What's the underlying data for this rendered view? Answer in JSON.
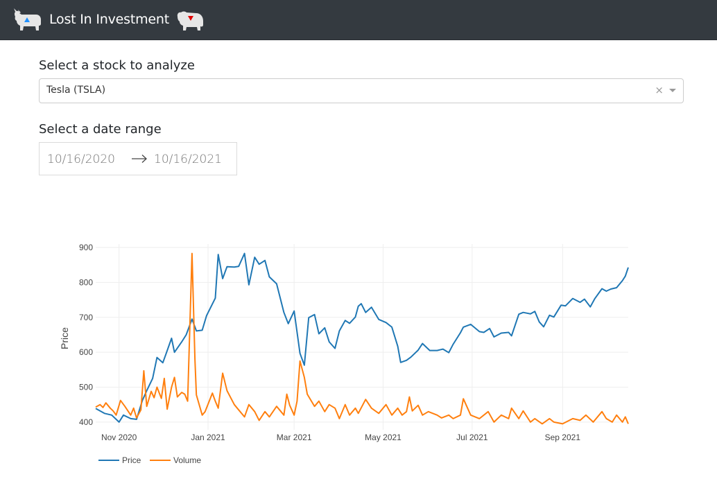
{
  "navbar": {
    "brand": "Lost In Investment",
    "bull_icon": "bull-icon",
    "bear_icon": "bear-icon",
    "colors": {
      "background": "#343a40",
      "bull_marker": "#1e90ff",
      "bear_marker": "#e00000"
    }
  },
  "stock_select": {
    "label": "Select a stock to analyze",
    "value": "Tesla (TSLA)",
    "clear_glyph": "×"
  },
  "date_range": {
    "label": "Select a date range",
    "start": "10/16/2020",
    "end": "10/16/2021"
  },
  "chart_data": {
    "type": "line",
    "title": "",
    "xlabel": "",
    "ylabel": "Price",
    "x_ticks": [
      "Nov 2020",
      "Jan 2021",
      "Mar 2021",
      "May 2021",
      "Jul 2021",
      "Sep 2021"
    ],
    "y_ticks": [
      400,
      500,
      600,
      700,
      800,
      900
    ],
    "ylim": [
      378,
      910
    ],
    "xlim": [
      "2020-10-16",
      "2021-10-16"
    ],
    "grid": true,
    "legend": "bottom-left",
    "series": [
      {
        "name": "Price",
        "color": "#1f77b4",
        "points": [
          [
            "2020-10-16",
            439
          ],
          [
            "2020-10-22",
            425
          ],
          [
            "2020-10-27",
            420
          ],
          [
            "2020-11-01",
            400
          ],
          [
            "2020-11-04",
            420
          ],
          [
            "2020-11-09",
            410
          ],
          [
            "2020-11-13",
            408
          ],
          [
            "2020-11-17",
            462
          ],
          [
            "2020-11-20",
            490
          ],
          [
            "2020-11-24",
            525
          ],
          [
            "2020-11-27",
            585
          ],
          [
            "2020-12-01",
            570
          ],
          [
            "2020-12-03",
            593
          ],
          [
            "2020-12-07",
            640
          ],
          [
            "2020-12-09",
            600
          ],
          [
            "2020-12-14",
            630
          ],
          [
            "2020-12-17",
            650
          ],
          [
            "2020-12-21",
            695
          ],
          [
            "2020-12-24",
            661
          ],
          [
            "2020-12-28",
            663
          ],
          [
            "2020-12-31",
            705
          ],
          [
            "2021-01-06",
            755
          ],
          [
            "2021-01-08",
            880
          ],
          [
            "2021-01-11",
            811
          ],
          [
            "2021-01-14",
            845
          ],
          [
            "2021-01-19",
            844
          ],
          [
            "2021-01-22",
            846
          ],
          [
            "2021-01-26",
            883
          ],
          [
            "2021-01-29",
            793
          ],
          [
            "2021-02-02",
            872
          ],
          [
            "2021-02-05",
            852
          ],
          [
            "2021-02-09",
            863
          ],
          [
            "2021-02-12",
            816
          ],
          [
            "2021-02-17",
            796
          ],
          [
            "2021-02-22",
            714
          ],
          [
            "2021-02-25",
            682
          ],
          [
            "2021-03-01",
            718
          ],
          [
            "2021-03-05",
            597
          ],
          [
            "2021-03-08",
            563
          ],
          [
            "2021-03-11",
            699
          ],
          [
            "2021-03-15",
            708
          ],
          [
            "2021-03-18",
            653
          ],
          [
            "2021-03-22",
            670
          ],
          [
            "2021-03-25",
            630
          ],
          [
            "2021-03-29",
            611
          ],
          [
            "2021-04-01",
            661
          ],
          [
            "2021-04-05",
            691
          ],
          [
            "2021-04-08",
            683
          ],
          [
            "2021-04-12",
            701
          ],
          [
            "2021-04-14",
            732
          ],
          [
            "2021-04-16",
            739
          ],
          [
            "2021-04-19",
            714
          ],
          [
            "2021-04-23",
            729
          ],
          [
            "2021-04-28",
            694
          ],
          [
            "2021-05-03",
            685
          ],
          [
            "2021-05-07",
            672
          ],
          [
            "2021-05-11",
            617
          ],
          [
            "2021-05-13",
            571
          ],
          [
            "2021-05-17",
            577
          ],
          [
            "2021-05-20",
            586
          ],
          [
            "2021-05-25",
            606
          ],
          [
            "2021-05-28",
            625
          ],
          [
            "2021-06-02",
            605
          ],
          [
            "2021-06-07",
            605
          ],
          [
            "2021-06-11",
            609
          ],
          [
            "2021-06-15",
            599
          ],
          [
            "2021-06-18",
            623
          ],
          [
            "2021-06-23",
            656
          ],
          [
            "2021-06-25",
            672
          ],
          [
            "2021-06-30",
            680
          ],
          [
            "2021-07-06",
            659
          ],
          [
            "2021-07-09",
            657
          ],
          [
            "2021-07-13",
            668
          ],
          [
            "2021-07-16",
            644
          ],
          [
            "2021-07-21",
            655
          ],
          [
            "2021-07-26",
            657
          ],
          [
            "2021-07-28",
            647
          ],
          [
            "2021-08-02",
            709
          ],
          [
            "2021-08-05",
            714
          ],
          [
            "2021-08-10",
            710
          ],
          [
            "2021-08-13",
            717
          ],
          [
            "2021-08-16",
            687
          ],
          [
            "2021-08-19",
            673
          ],
          [
            "2021-08-23",
            706
          ],
          [
            "2021-08-26",
            701
          ],
          [
            "2021-08-31",
            735
          ],
          [
            "2021-09-03",
            733
          ],
          [
            "2021-09-08",
            754
          ],
          [
            "2021-09-13",
            743
          ],
          [
            "2021-09-16",
            752
          ],
          [
            "2021-09-20",
            730
          ],
          [
            "2021-09-23",
            753
          ],
          [
            "2021-09-28",
            782
          ],
          [
            "2021-10-01",
            775
          ],
          [
            "2021-10-04",
            781
          ],
          [
            "2021-10-08",
            785
          ],
          [
            "2021-10-12",
            805
          ],
          [
            "2021-10-14",
            818
          ],
          [
            "2021-10-16",
            843
          ]
        ]
      },
      {
        "name": "Volume",
        "color": "#ff7f0e",
        "points": [
          [
            "2020-10-16",
            443
          ],
          [
            "2020-10-19",
            450
          ],
          [
            "2020-10-21",
            442
          ],
          [
            "2020-10-23",
            455
          ],
          [
            "2020-10-26",
            440
          ],
          [
            "2020-10-28",
            432
          ],
          [
            "2020-10-30",
            420
          ],
          [
            "2020-11-02",
            462
          ],
          [
            "2020-11-05",
            445
          ],
          [
            "2020-11-09",
            420
          ],
          [
            "2020-11-11",
            440
          ],
          [
            "2020-11-13",
            412
          ],
          [
            "2020-11-16",
            435
          ],
          [
            "2020-11-18",
            547
          ],
          [
            "2020-11-20",
            445
          ],
          [
            "2020-11-23",
            488
          ],
          [
            "2020-11-25",
            470
          ],
          [
            "2020-11-27",
            500
          ],
          [
            "2020-11-30",
            468
          ],
          [
            "2020-12-02",
            525
          ],
          [
            "2020-12-04",
            437
          ],
          [
            "2020-12-07",
            500
          ],
          [
            "2020-12-09",
            528
          ],
          [
            "2020-12-11",
            472
          ],
          [
            "2020-12-14",
            485
          ],
          [
            "2020-12-16",
            480
          ],
          [
            "2020-12-18",
            460
          ],
          [
            "2020-12-21",
            883
          ],
          [
            "2020-12-23",
            580
          ],
          [
            "2020-12-24",
            478
          ],
          [
            "2020-12-28",
            420
          ],
          [
            "2020-12-30",
            430
          ],
          [
            "2021-01-04",
            483
          ],
          [
            "2021-01-06",
            460
          ],
          [
            "2021-01-08",
            440
          ],
          [
            "2021-01-11",
            540
          ],
          [
            "2021-01-14",
            490
          ],
          [
            "2021-01-19",
            450
          ],
          [
            "2021-01-22",
            435
          ],
          [
            "2021-01-26",
            415
          ],
          [
            "2021-01-29",
            450
          ],
          [
            "2021-02-02",
            430
          ],
          [
            "2021-02-05",
            405
          ],
          [
            "2021-02-09",
            430
          ],
          [
            "2021-02-12",
            415
          ],
          [
            "2021-02-17",
            445
          ],
          [
            "2021-02-22",
            420
          ],
          [
            "2021-02-24",
            480
          ],
          [
            "2021-02-26",
            448
          ],
          [
            "2021-03-01",
            420
          ],
          [
            "2021-03-03",
            460
          ],
          [
            "2021-03-05",
            575
          ],
          [
            "2021-03-08",
            528
          ],
          [
            "2021-03-10",
            480
          ],
          [
            "2021-03-15",
            445
          ],
          [
            "2021-03-18",
            460
          ],
          [
            "2021-03-22",
            430
          ],
          [
            "2021-03-25",
            450
          ],
          [
            "2021-03-29",
            440
          ],
          [
            "2021-04-01",
            410
          ],
          [
            "2021-04-05",
            450
          ],
          [
            "2021-04-08",
            420
          ],
          [
            "2021-04-12",
            440
          ],
          [
            "2021-04-14",
            425
          ],
          [
            "2021-04-19",
            465
          ],
          [
            "2021-04-23",
            440
          ],
          [
            "2021-04-28",
            425
          ],
          [
            "2021-05-03",
            450
          ],
          [
            "2021-05-07",
            420
          ],
          [
            "2021-05-11",
            440
          ],
          [
            "2021-05-14",
            420
          ],
          [
            "2021-05-17",
            430
          ],
          [
            "2021-05-19",
            472
          ],
          [
            "2021-05-21",
            432
          ],
          [
            "2021-05-25",
            448
          ],
          [
            "2021-05-28",
            420
          ],
          [
            "2021-06-01",
            430
          ],
          [
            "2021-06-07",
            420
          ],
          [
            "2021-06-10",
            412
          ],
          [
            "2021-06-15",
            420
          ],
          [
            "2021-06-18",
            410
          ],
          [
            "2021-06-23",
            420
          ],
          [
            "2021-06-25",
            467
          ],
          [
            "2021-06-30",
            420
          ],
          [
            "2021-07-06",
            410
          ],
          [
            "2021-07-12",
            430
          ],
          [
            "2021-07-16",
            400
          ],
          [
            "2021-07-21",
            420
          ],
          [
            "2021-07-26",
            410
          ],
          [
            "2021-07-28",
            440
          ],
          [
            "2021-08-02",
            410
          ],
          [
            "2021-08-05",
            432
          ],
          [
            "2021-08-10",
            400
          ],
          [
            "2021-08-13",
            410
          ],
          [
            "2021-08-18",
            395
          ],
          [
            "2021-08-23",
            410
          ],
          [
            "2021-08-26",
            400
          ],
          [
            "2021-09-01",
            395
          ],
          [
            "2021-09-08",
            410
          ],
          [
            "2021-09-13",
            405
          ],
          [
            "2021-09-17",
            420
          ],
          [
            "2021-09-22",
            400
          ],
          [
            "2021-09-28",
            430
          ],
          [
            "2021-10-01",
            410
          ],
          [
            "2021-10-05",
            400
          ],
          [
            "2021-10-08",
            420
          ],
          [
            "2021-10-12",
            400
          ],
          [
            "2021-10-14",
            415
          ],
          [
            "2021-10-16",
            395
          ]
        ]
      }
    ]
  }
}
